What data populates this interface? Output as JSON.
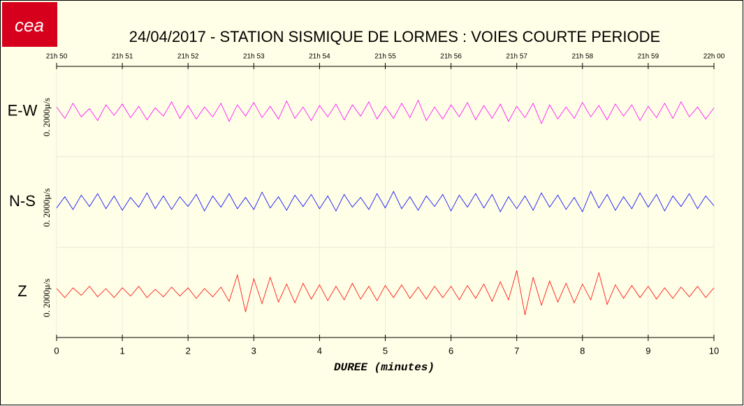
{
  "chart_data": {
    "type": "line",
    "logo": "cea",
    "title": "24/04/2017  -  STATION SISMIQUE DE LORMES : VOIES COURTE PERIODE",
    "xlabel": "DUREE (minutes)",
    "scale_label": "0. 2000µ/s",
    "xlim": [
      0,
      10
    ],
    "xticks": [
      0,
      1,
      2,
      3,
      4,
      5,
      6,
      7,
      8,
      9,
      10
    ],
    "top_ticks": [
      {
        "value": 0,
        "label": "21h 50"
      },
      {
        "value": 1,
        "label": "21h 51"
      },
      {
        "value": 2,
        "label": "21h 52"
      },
      {
        "value": 3,
        "label": "21h 53"
      },
      {
        "value": 4,
        "label": "21h 54"
      },
      {
        "value": 5,
        "label": "21h 55"
      },
      {
        "value": 6,
        "label": "21h 56"
      },
      {
        "value": 7,
        "label": "21h 57"
      },
      {
        "value": 8,
        "label": "21h 58"
      },
      {
        "value": 9,
        "label": "21h 59"
      },
      {
        "value": 10,
        "label": "22h 00"
      }
    ],
    "grid": true,
    "ylim": [
      -6,
      6
    ],
    "x": [
      0,
      0.125,
      0.25,
      0.375,
      0.5,
      0.625,
      0.75,
      0.875,
      1,
      1.125,
      1.25,
      1.375,
      1.5,
      1.625,
      1.75,
      1.875,
      2,
      2.125,
      2.25,
      2.375,
      2.5,
      2.625,
      2.75,
      2.875,
      3,
      3.125,
      3.25,
      3.375,
      3.5,
      3.625,
      3.75,
      3.875,
      4,
      4.125,
      4.25,
      4.375,
      4.5,
      4.625,
      4.75,
      4.875,
      5,
      5.125,
      5.25,
      5.375,
      5.5,
      5.625,
      5.75,
      5.875,
      6,
      6.125,
      6.25,
      6.375,
      6.5,
      6.625,
      6.75,
      6.875,
      7,
      7.125,
      7.25,
      7.375,
      7.5,
      7.625,
      7.75,
      7.875,
      8,
      8.125,
      8.25,
      8.375,
      8.5,
      8.625,
      8.75,
      8.875,
      9,
      9.125,
      9.25,
      9.375,
      9.5,
      9.625,
      9.75,
      9.875,
      10
    ],
    "series": [
      {
        "name": "E-W",
        "color": "#ff00ff",
        "values": [
          0.6,
          -0.9,
          1.1,
          -0.7,
          0.4,
          -1.2,
          0.9,
          -0.5,
          1.0,
          -0.8,
          0.7,
          -1.1,
          0.5,
          -0.6,
          1.3,
          -0.9,
          0.8,
          -1.0,
          0.6,
          -0.7,
          1.1,
          -1.3,
          0.9,
          -0.6,
          1.2,
          -0.8,
          0.7,
          -1.0,
          1.4,
          -0.9,
          0.6,
          -1.2,
          0.8,
          -0.7,
          1.0,
          -1.1,
          0.9,
          -0.6,
          1.3,
          -1.0,
          0.7,
          -0.9,
          1.1,
          -0.8,
          1.5,
          -1.2,
          0.6,
          -1.0,
          0.9,
          -0.7,
          1.2,
          -1.1,
          0.8,
          -0.9,
          1.0,
          -1.3,
          0.7,
          -0.8,
          1.1,
          -1.6,
          0.9,
          -1.0,
          0.6,
          -0.9,
          1.2,
          -0.7,
          0.8,
          -1.1,
          1.0,
          -0.6,
          0.9,
          -1.2,
          0.7,
          -0.8,
          1.1,
          -0.9,
          1.3,
          -0.7,
          0.6,
          -1.0,
          0.5
        ]
      },
      {
        "name": "N-S",
        "color": "#0000ff",
        "values": [
          -0.8,
          0.7,
          -1.0,
          0.9,
          -0.6,
          1.1,
          -0.9,
          0.8,
          -1.1,
          0.6,
          -0.7,
          1.2,
          -0.9,
          0.8,
          -1.0,
          0.7,
          -0.6,
          1.0,
          -1.2,
          0.8,
          -0.7,
          1.1,
          -0.9,
          0.6,
          -1.0,
          1.3,
          -0.8,
          0.7,
          -1.1,
          0.9,
          -0.6,
          1.0,
          -0.9,
          0.8,
          -1.2,
          1.0,
          -0.7,
          0.6,
          -1.0,
          1.1,
          -0.8,
          1.4,
          -0.9,
          0.7,
          -1.1,
          0.8,
          -0.6,
          1.0,
          -1.2,
          0.9,
          -0.7,
          1.1,
          -0.8,
          1.0,
          -1.3,
          0.7,
          -0.9,
          0.8,
          -1.1,
          1.2,
          -0.7,
          0.9,
          -1.0,
          0.6,
          -1.3,
          1.4,
          -0.8,
          1.0,
          -1.1,
          0.7,
          -0.9,
          1.2,
          -0.7,
          1.0,
          -1.2,
          0.8,
          -0.6,
          1.1,
          -0.9,
          0.8,
          -0.5
        ]
      },
      {
        "name": "Z",
        "color": "#ff0000",
        "values": [
          0.5,
          -0.7,
          0.6,
          -0.4,
          0.8,
          -0.6,
          0.5,
          -0.7,
          0.6,
          -0.5,
          0.8,
          -0.7,
          0.4,
          -0.6,
          0.7,
          -0.5,
          0.6,
          -0.8,
          0.5,
          -0.6,
          0.7,
          -1.2,
          2.3,
          -2.6,
          1.8,
          -1.5,
          2.0,
          -1.3,
          1.1,
          -1.4,
          1.2,
          -0.9,
          1.0,
          -1.1,
          0.8,
          -1.0,
          1.2,
          -0.9,
          0.8,
          -1.1,
          0.9,
          -0.7,
          1.0,
          -0.8,
          0.7,
          -0.9,
          0.8,
          -0.7,
          0.8,
          -1.0,
          0.9,
          -0.8,
          1.1,
          -1.2,
          1.4,
          -1.0,
          2.9,
          -3.0,
          2.0,
          -1.7,
          1.5,
          -1.3,
          1.2,
          -1.4,
          1.1,
          -1.0,
          2.6,
          -1.6,
          1.0,
          -0.8,
          0.9,
          -0.7,
          0.8,
          -0.9,
          0.6,
          -0.8,
          0.7,
          -0.6,
          0.8,
          -0.7,
          0.6
        ]
      }
    ]
  }
}
